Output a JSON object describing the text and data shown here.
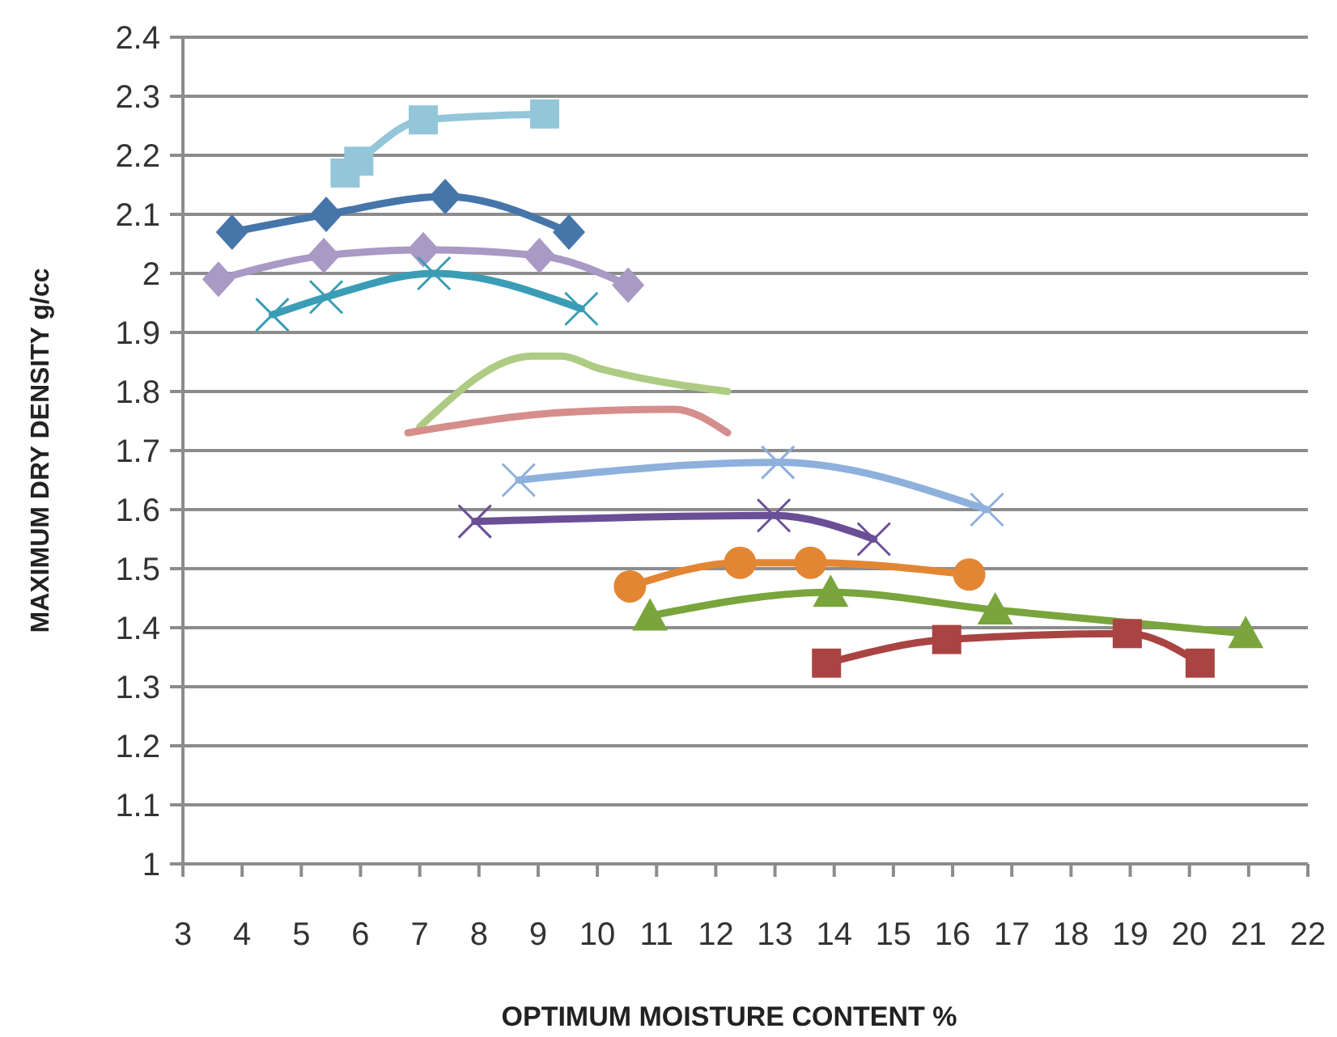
{
  "chart_data": {
    "type": "line",
    "xlabel": "OPTIMUM  MOISTURE  CONTENT %",
    "ylabel": "MAXIMUM  DRY DENSITY g/cc",
    "xlim": [
      3,
      22
    ],
    "xticks": [
      3,
      4,
      5,
      6,
      7,
      8,
      9,
      10,
      11,
      12,
      13,
      14,
      15,
      16,
      17,
      18,
      19,
      20,
      21,
      22
    ],
    "ylim": [
      1,
      2.4
    ],
    "yticks": [
      1,
      1.1,
      1.2,
      1.3,
      1.4,
      1.5,
      1.6,
      1.7,
      1.8,
      1.9,
      2,
      2.1,
      2.2,
      2.3,
      2.4
    ],
    "grid": "y",
    "line_style": "solid",
    "series": [
      {
        "color": "#93c6d9",
        "marker": "square",
        "x": [
          5.74,
          5.97,
          7.06,
          9.11
        ],
        "values": [
          2.17,
          2.19,
          2.26,
          2.27
        ]
      },
      {
        "color": "#4675aa",
        "marker": "diamond",
        "x": [
          3.83,
          5.42,
          7.43,
          9.52
        ],
        "values": [
          2.07,
          2.1,
          2.13,
          2.07
        ]
      },
      {
        "color": "#a899c5",
        "marker": "diamond",
        "x": [
          3.6,
          5.38,
          7.06,
          9.02,
          10.52
        ],
        "values": [
          1.99,
          2.03,
          2.04,
          2.03,
          1.98
        ]
      },
      {
        "color": "#3a9db5",
        "marker": "cross",
        "x": [
          4.51,
          5.42,
          7.24,
          9.73
        ],
        "values": [
          1.93,
          1.96,
          2,
          1.94
        ]
      },
      {
        "color": "#aecb83",
        "marker": "none",
        "x": [
          7,
          8.9,
          9.4,
          10,
          10.4,
          12.2
        ],
        "values": [
          1.74,
          1.86,
          1.86,
          1.84,
          1.83,
          1.8
        ]
      },
      {
        "color": "#d68e8c",
        "marker": "none",
        "x": [
          6.8,
          9.5,
          11.3,
          12.2
        ],
        "values": [
          1.73,
          1.765,
          1.77,
          1.73
        ]
      },
      {
        "color": "#8eb0dc",
        "marker": "cross",
        "x": [
          8.67,
          13.05,
          16.58
        ],
        "values": [
          1.65,
          1.68,
          1.6
        ]
      },
      {
        "color": "#6a4f96",
        "marker": "cross",
        "x": [
          7.93,
          12.98,
          14.67
        ],
        "values": [
          1.58,
          1.59,
          1.55
        ]
      },
      {
        "color": "#e38634",
        "marker": "circle",
        "x": [
          10.55,
          12.41,
          13.6,
          16.28
        ],
        "values": [
          1.47,
          1.51,
          1.51,
          1.49
        ]
      },
      {
        "color": "#79a53c",
        "marker": "triangle",
        "x": [
          10.89,
          13.94,
          16.72,
          20.95
        ],
        "values": [
          1.42,
          1.46,
          1.43,
          1.39
        ]
      },
      {
        "color": "#a94442",
        "marker": "square",
        "x": [
          13.87,
          15.9,
          18.95,
          20.18
        ],
        "values": [
          1.34,
          1.38,
          1.39,
          1.34
        ]
      }
    ]
  }
}
